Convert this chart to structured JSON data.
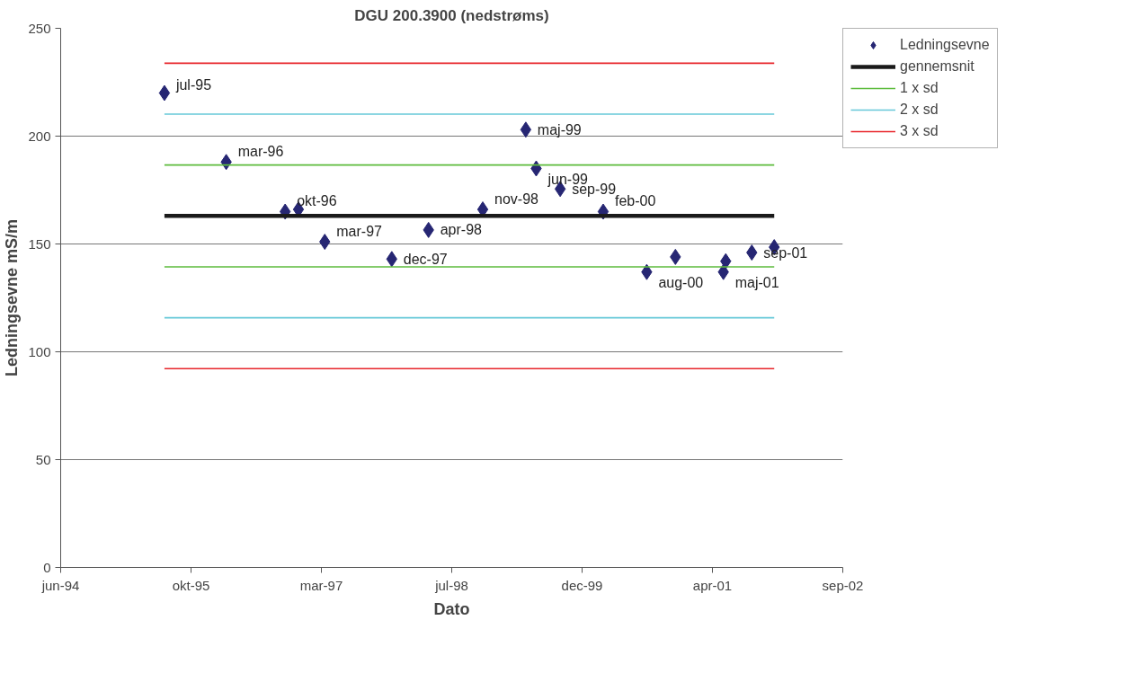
{
  "chart_data": {
    "type": "scatter",
    "title": "DGU 200.3900 (nedstrøms)",
    "xlabel": "Dato",
    "ylabel": "Ledningsevne mS/m",
    "xlim": [
      "1994-06-15",
      "2002-09-01"
    ],
    "xticks": [
      {
        "value": "1994-06-15",
        "label": "jun-94"
      },
      {
        "value": "1995-10-28",
        "label": "okt-95"
      },
      {
        "value": "1997-03-11",
        "label": "mar-97"
      },
      {
        "value": "1998-07-24",
        "label": "jul-98"
      },
      {
        "value": "1999-12-06",
        "label": "dec-99"
      },
      {
        "value": "2001-04-19",
        "label": "apr-01"
      },
      {
        "value": "2002-09-01",
        "label": "sep-02"
      }
    ],
    "ylim": [
      0,
      250
    ],
    "yticks": [
      0,
      50,
      100,
      150,
      200,
      250
    ],
    "grid": "y",
    "legend": "top right",
    "series": [
      {
        "name": "Ledningsevne",
        "marker": "diamond",
        "color": "#262673",
        "x": [
          "1995-07-18",
          "1996-03-11",
          "1996-10-23",
          "1996-12-13",
          "1997-03-24",
          "1997-12-06",
          "1998-04-26",
          "1998-11-20",
          "1999-05-04",
          "1999-06-13",
          "1999-09-13",
          "2000-02-25",
          "2000-08-10",
          "2000-11-28",
          "2001-05-31",
          "2001-06-09",
          "2001-09-17",
          "2001-12-12"
        ],
        "values": [
          220,
          188,
          165,
          166,
          151,
          143,
          156.5,
          166,
          203,
          185,
          175.5,
          165,
          137,
          144,
          137,
          142,
          146,
          148.5
        ],
        "value_labels": [
          "jul-95",
          "mar-96",
          "okt-96",
          null,
          "mar-97",
          "dec-97",
          "apr-98",
          "nov-98",
          "maj-99",
          "jun-99",
          "sep-99",
          "feb-00",
          "aug-00",
          null,
          "maj-01",
          null,
          "sep-01",
          null
        ]
      },
      {
        "name": "gennemsnit",
        "type": "line",
        "color": "#1a1a1a",
        "x": [
          "1995-07-18",
          "2001-12-12"
        ],
        "values": [
          163,
          163
        ]
      },
      {
        "name": "1 x sd",
        "type": "line",
        "color": "#5dbb3c",
        "x": [
          "1995-07-18",
          "2001-12-12"
        ],
        "values": [
          186.6,
          186.6
        ]
      },
      {
        "type": "line",
        "color": "#5dbb3c",
        "x": [
          "1995-07-18",
          "2001-12-12"
        ],
        "values": [
          139.4,
          139.4
        ]
      },
      {
        "name": "2 x sd",
        "type": "line",
        "color": "#66c8d8",
        "x": [
          "1995-07-18",
          "2001-12-12"
        ],
        "values": [
          210.2,
          210.2
        ]
      },
      {
        "type": "line",
        "color": "#66c8d8",
        "x": [
          "1995-07-18",
          "2001-12-12"
        ],
        "values": [
          115.8,
          115.8
        ]
      },
      {
        "name": "3 x sd",
        "type": "line",
        "color": "#e8252a",
        "x": [
          "1995-07-18",
          "2001-12-12"
        ],
        "values": [
          233.8,
          233.8
        ]
      },
      {
        "type": "line",
        "color": "#e8252a",
        "x": [
          "1995-07-18",
          "2001-12-12"
        ],
        "values": [
          92.2,
          92.2
        ]
      }
    ]
  }
}
